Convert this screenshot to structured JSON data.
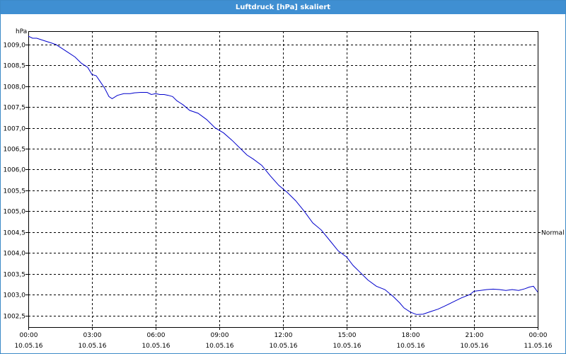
{
  "window": {
    "title": "Luftdruck [hPa] skaliert"
  },
  "chart_data": {
    "type": "line",
    "title": "Luftdruck [hPa] skaliert",
    "ylabel": "hPa",
    "xlabel": "",
    "ylim": [
      1002.22,
      1009.32
    ],
    "xlim": [
      0,
      24
    ],
    "grid": true,
    "y_ticks": [
      "1009,0",
      "1008,5",
      "1008,0",
      "1007,5",
      "1007,0",
      "1006,5",
      "1006,0",
      "1005,5",
      "1005,0",
      "1004,5",
      "1004,0",
      "1003,5",
      "1003,0",
      "1002,5"
    ],
    "y_tick_values": [
      1009.0,
      1008.5,
      1008.0,
      1007.5,
      1007.0,
      1006.5,
      1006.0,
      1005.5,
      1005.0,
      1004.5,
      1004.0,
      1003.5,
      1003.0,
      1002.5
    ],
    "x_ticks": [
      {
        "time": "00:00",
        "date": "10.05.16",
        "h": 0
      },
      {
        "time": "03:00",
        "date": "10.05.16",
        "h": 3
      },
      {
        "time": "06:00",
        "date": "10.05.16",
        "h": 6
      },
      {
        "time": "09:00",
        "date": "10.05.16",
        "h": 9
      },
      {
        "time": "12:00",
        "date": "10.05.16",
        "h": 12
      },
      {
        "time": "15:00",
        "date": "10.05.16",
        "h": 15
      },
      {
        "time": "18:00",
        "date": "10.05.16",
        "h": 18
      },
      {
        "time": "21:00",
        "date": "10.05.16",
        "h": 21
      },
      {
        "time": "00:00",
        "date": "11.05.16",
        "h": 24
      }
    ],
    "reference_line": {
      "label": "Normal",
      "value": 1004.5
    },
    "series": [
      {
        "color": "#0000cc",
        "x": [
          0,
          0.2,
          0.4,
          0.7,
          1.0,
          1.3,
          1.6,
          1.9,
          2.2,
          2.5,
          2.8,
          3.0,
          3.2,
          3.4,
          3.6,
          3.8,
          3.95,
          4.2,
          4.5,
          4.8,
          5.0,
          5.3,
          5.6,
          5.8,
          6.0,
          6.2,
          6.4,
          6.6,
          6.8,
          7.0,
          7.3,
          7.6,
          8.0,
          8.4,
          8.8,
          9.2,
          9.6,
          10.0,
          10.3,
          10.6,
          11.0,
          11.4,
          11.8,
          12.2,
          12.6,
          13.0,
          13.4,
          13.8,
          14.2,
          14.6,
          15.0,
          15.3,
          15.6,
          16.0,
          16.4,
          16.8,
          17.2,
          17.5,
          17.7,
          18.0,
          18.3,
          18.6,
          19.0,
          19.3,
          19.6,
          20.0,
          20.4,
          20.8,
          21.0,
          21.3,
          21.6,
          21.9,
          22.2,
          22.5,
          22.8,
          23.1,
          23.4,
          23.6,
          23.8,
          24.0
        ],
        "y": [
          1009.2,
          1009.15,
          1009.15,
          1009.1,
          1009.05,
          1009.0,
          1008.9,
          1008.8,
          1008.7,
          1008.55,
          1008.45,
          1008.28,
          1008.25,
          1008.1,
          1007.95,
          1007.75,
          1007.7,
          1007.78,
          1007.82,
          1007.82,
          1007.84,
          1007.85,
          1007.85,
          1007.8,
          1007.82,
          1007.8,
          1007.8,
          1007.78,
          1007.75,
          1007.65,
          1007.55,
          1007.42,
          1007.35,
          1007.2,
          1007.0,
          1006.88,
          1006.7,
          1006.5,
          1006.35,
          1006.25,
          1006.1,
          1005.85,
          1005.62,
          1005.45,
          1005.25,
          1005.0,
          1004.72,
          1004.55,
          1004.3,
          1004.05,
          1003.9,
          1003.7,
          1003.55,
          1003.35,
          1003.2,
          1003.12,
          1002.95,
          1002.8,
          1002.68,
          1002.58,
          1002.52,
          1002.53,
          1002.6,
          1002.65,
          1002.72,
          1002.82,
          1002.92,
          1003.0,
          1003.08,
          1003.1,
          1003.12,
          1003.13,
          1003.12,
          1003.1,
          1003.12,
          1003.1,
          1003.14,
          1003.18,
          1003.2,
          1003.06
        ]
      }
    ]
  }
}
